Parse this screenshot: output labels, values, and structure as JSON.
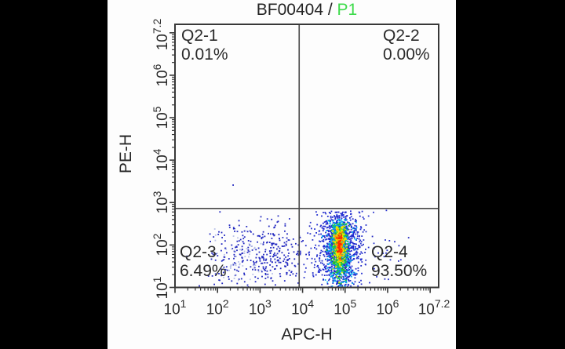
{
  "window": {
    "background": "#000000",
    "panel_background": "#fdfdfd"
  },
  "header": {
    "sample": "BF00404 /",
    "gate": "P1",
    "gate_color": "#3ddb4b"
  },
  "chart_data": {
    "type": "scatter",
    "title": "BF00404 / P1",
    "xlabel": "APC-H",
    "ylabel": "PE-H",
    "grid": "off",
    "x_axis": {
      "scale": "log10",
      "min_exp": 1,
      "max_exp": 7.2,
      "labeled_exps": [
        "1",
        "2",
        "3",
        "4",
        "5",
        "6",
        "7.2"
      ],
      "base": "10"
    },
    "y_axis": {
      "scale": "log10",
      "min_exp": 1,
      "max_exp": 7.2,
      "labeled_exps": [
        "1",
        "2",
        "3",
        "4",
        "5",
        "6",
        "7.2"
      ],
      "base": "10"
    },
    "quadrants": {
      "x_divider_exp": 3.92,
      "y_divider_exp": 2.86,
      "q1": {
        "name": "Q2-1",
        "pct": "0.01%"
      },
      "q2": {
        "name": "Q2-2",
        "pct": "0.00%"
      },
      "q3": {
        "name": "Q2-3",
        "pct": "6.49%"
      },
      "q4": {
        "name": "Q2-4",
        "pct": "93.50%"
      }
    },
    "colors": {
      "axis": "#383838",
      "quadrant_line": "#484848",
      "text": "#2a2a2a",
      "density_scale": [
        "#1f2ad0",
        "#00aaee",
        "#21cc28",
        "#f2e400",
        "#ff9100",
        "#ff2600"
      ]
    },
    "populations": [
      {
        "name": "q4-halo",
        "color": "#2a35cc",
        "n": 170,
        "center": [
          4.87,
          1.9
        ],
        "sigma": [
          0.55,
          0.5
        ],
        "clamp_y": [
          1.0,
          2.82
        ]
      },
      {
        "name": "q3-cluster-a",
        "color": "#2228c0",
        "n": 145,
        "center": [
          2.45,
          1.72
        ],
        "sigma": [
          0.4,
          0.38
        ],
        "clamp_y": [
          1.0,
          2.78
        ]
      },
      {
        "name": "q3-cluster-b",
        "color": "#2228c0",
        "n": 190,
        "center": [
          3.3,
          1.78
        ],
        "sigma": [
          0.32,
          0.4
        ],
        "clamp_y": [
          1.0,
          2.78
        ]
      },
      {
        "name": "q3-faint",
        "color": "#b9c2e8",
        "n": 55,
        "center": [
          2.55,
          1.66
        ],
        "sigma": [
          0.33,
          0.32
        ],
        "clamp_y": [
          1.0,
          2.6
        ]
      },
      {
        "name": "q4-right-sparse",
        "color": "#2228c0",
        "n": 13,
        "center": [
          5.85,
          1.95
        ],
        "sigma": [
          0.42,
          0.24
        ],
        "clamp_y": [
          1.0,
          2.6
        ]
      },
      {
        "name": "q4-core-blue",
        "color": "#1f2ad0",
        "n": 950,
        "center": [
          4.87,
          1.92
        ],
        "sigma": [
          0.24,
          0.55
        ],
        "clamp_y": [
          1.0,
          2.8
        ]
      },
      {
        "name": "q4-core-cyan",
        "color": "#00aaee",
        "n": 430,
        "center": [
          4.87,
          1.95
        ],
        "sigma": [
          0.135,
          0.46
        ],
        "clamp_y": [
          1.0,
          2.6
        ]
      },
      {
        "name": "q4-core-green",
        "color": "#21cc28",
        "n": 330,
        "center": [
          4.87,
          1.97
        ],
        "sigma": [
          0.095,
          0.37
        ],
        "clamp_y": [
          1.0,
          2.5
        ]
      },
      {
        "name": "q4-core-yellow",
        "color": "#f2e400",
        "n": 230,
        "center": [
          4.87,
          2.0
        ],
        "sigma": [
          0.065,
          0.28
        ],
        "clamp_y": [
          1.05,
          2.45
        ]
      },
      {
        "name": "q4-core-orange",
        "color": "#ff9100",
        "n": 95,
        "center": [
          4.87,
          2.02
        ],
        "sigma": [
          0.045,
          0.18
        ],
        "clamp_y": [
          1.1,
          2.4
        ]
      },
      {
        "name": "q4-core-red",
        "color": "#ff2600",
        "n": 48,
        "center": [
          4.87,
          2.02
        ],
        "sigma": [
          0.03,
          0.13
        ],
        "clamp_y": [
          1.5,
          2.35
        ]
      },
      {
        "name": "q1-single-event",
        "color": "#2228c0",
        "n": 1,
        "center": [
          2.37,
          3.41
        ],
        "sigma": [
          0.001,
          0.001
        ]
      }
    ]
  }
}
